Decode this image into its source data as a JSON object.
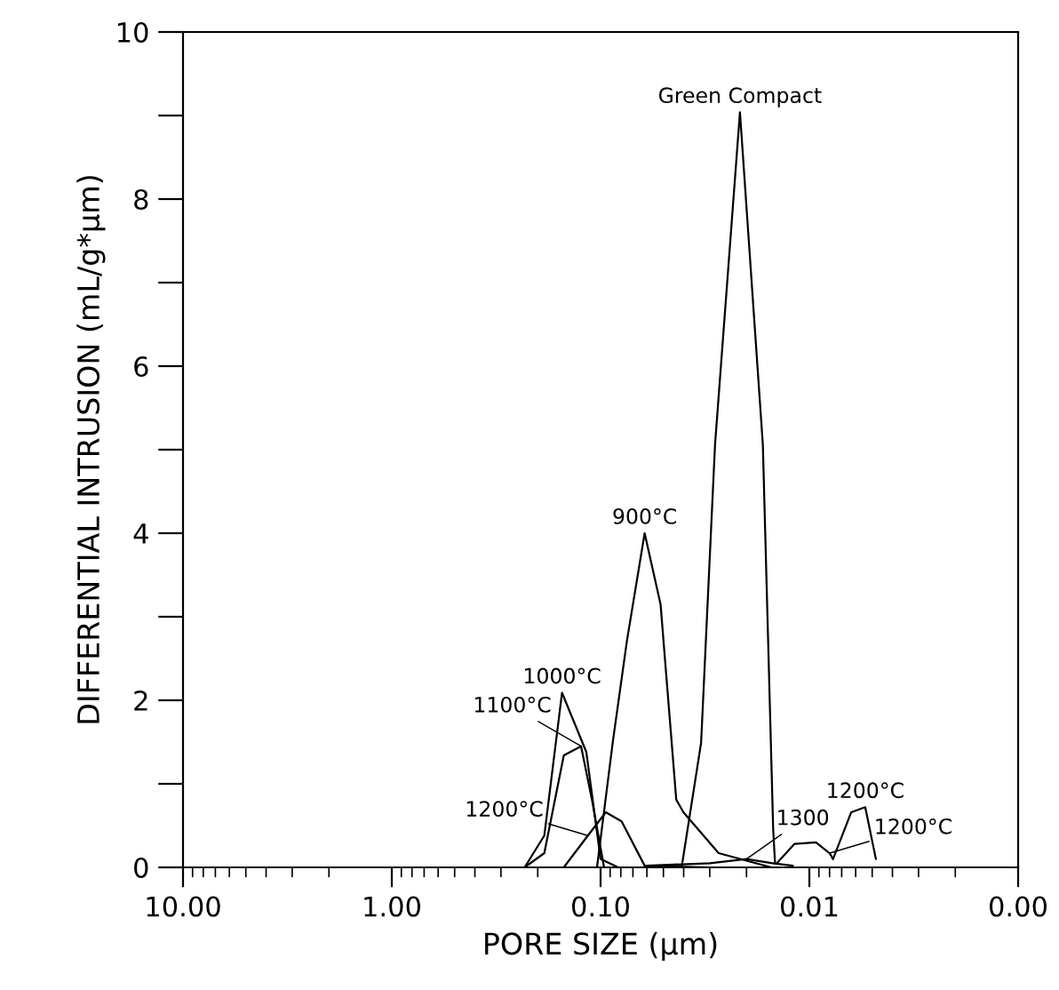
{
  "chart_data": {
    "type": "line",
    "xlabel": "PORE SIZE (µm)",
    "ylabel": "DIFFERENTIAL INTRUSION (mL/g*µm)",
    "log": "x",
    "xlim": [
      10,
      0.001
    ],
    "ylim": [
      0,
      10
    ],
    "xticks": [
      {
        "value": 10,
        "label": "10.00"
      },
      {
        "value": 1,
        "label": "1.00"
      },
      {
        "value": 0.1,
        "label": "0.10"
      },
      {
        "value": 0.01,
        "label": "0.01"
      },
      {
        "value": 0.001,
        "label": "0.00"
      }
    ],
    "yticks": [
      0,
      {
        "value": 1,
        "label": null
      },
      2,
      {
        "value": 3,
        "label": null
      },
      4,
      {
        "value": 5,
        "label": null
      },
      6,
      {
        "value": 7,
        "label": null
      },
      8,
      {
        "value": 9,
        "label": null
      },
      10
    ],
    "grid": false,
    "legend": false,
    "marker": "none",
    "line_style": "solid",
    "series": [
      {
        "name": "Green Compact",
        "color": "#000000",
        "x": [
          0.0409,
          0.033,
          0.0283,
          0.0215,
          0.0167,
          0.0149,
          0.0146
        ],
        "values": [
          0,
          1.49,
          5.06,
          9.04,
          5.06,
          0.45,
          0.05
        ]
      },
      {
        "name": "900°C",
        "color": "#000000",
        "x": [
          0.104,
          0.0873,
          0.0747,
          0.0615,
          0.0516,
          0.0434,
          0.0401,
          0.0272,
          0.0152
        ],
        "values": [
          0,
          1.51,
          2.72,
          4.0,
          3.15,
          0.81,
          0.66,
          0.17,
          0
        ]
      },
      {
        "name": "1000°C",
        "color": "#000000",
        "x": [
          0.231,
          0.186,
          0.153,
          0.117,
          0.1,
          0.0824
        ],
        "values": [
          0,
          0.38,
          2.09,
          1.38,
          0.1,
          0
        ]
      },
      {
        "name": "1100°C",
        "color": "#000000",
        "x": [
          0.231,
          0.186,
          0.15,
          0.124,
          0.11,
          0.0962
        ],
        "values": [
          0,
          0.17,
          1.34,
          1.45,
          0.81,
          0
        ]
      },
      {
        "name": "1200°C",
        "color": "#000000",
        "x": [
          0.15,
          0.115,
          0.0944,
          0.0793,
          0.0615,
          0.03
        ],
        "values": [
          0,
          0.38,
          0.66,
          0.55,
          0.02,
          0
        ]
      },
      {
        "name": "1300",
        "color": "#000000",
        "x": [
          0.06,
          0.03,
          0.02,
          0.015,
          0.012
        ],
        "values": [
          0.02,
          0.05,
          0.1,
          0.05,
          0.02
        ]
      },
      {
        "name": "1200°C",
        "color": "#000000",
        "x": [
          0.0143,
          0.0118,
          0.0093,
          0.008,
          0.0077
        ],
        "values": [
          0.05,
          0.28,
          0.3,
          0.17,
          0.1
        ]
      },
      {
        "name": "1200°C",
        "color": "#000000",
        "x": [
          0.0077,
          0.0063,
          0.0054,
          0.0048
        ],
        "values": [
          0.1,
          0.66,
          0.72,
          0.1
        ]
      }
    ]
  }
}
